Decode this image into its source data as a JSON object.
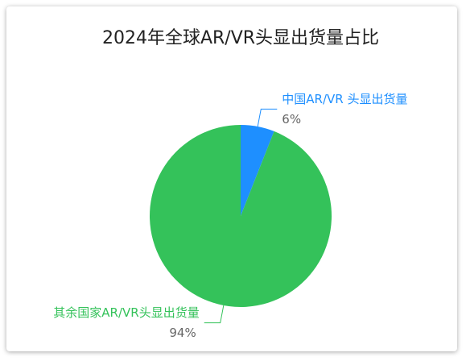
{
  "chart_data": {
    "type": "pie",
    "title": "2024年全球AR/VR头显出货量占比",
    "categories": [
      "中国AR/VR 头显出货量",
      "其余国家AR/VR头显出货量"
    ],
    "values": [
      6,
      94
    ],
    "value_labels": [
      "6%",
      "94%"
    ],
    "colors": [
      "#1e8fff",
      "#34c25a"
    ]
  }
}
